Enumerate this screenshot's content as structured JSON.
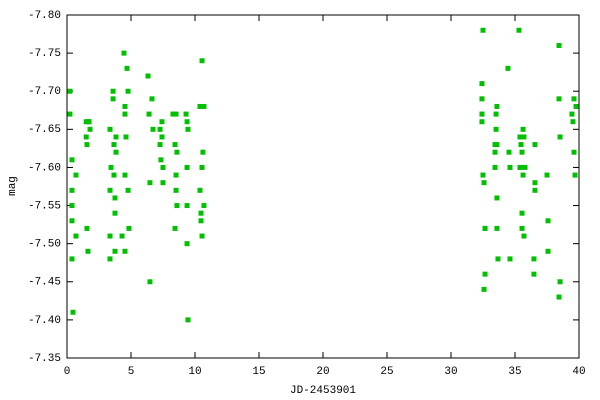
{
  "chart_data": {
    "type": "scatter",
    "x_label": "JD-2453901",
    "y_label": "mag",
    "color": "#00c000",
    "xlim": [
      0,
      40
    ],
    "xticks": [
      0,
      5,
      10,
      15,
      20,
      25,
      30,
      35,
      40
    ],
    "ylim": [
      -7.35,
      -7.8
    ],
    "yticks": [
      {
        "value": -7.8,
        "label": "-7.80"
      },
      -7.75,
      {
        "value": -7.7,
        "label": "-7.70"
      },
      -7.65,
      {
        "value": -7.6,
        "label": "-7.60"
      },
      -7.55,
      {
        "value": -7.5,
        "label": "-7.50"
      },
      -7.45,
      {
        "value": -7.4,
        "label": "-7.40"
      },
      -7.35
    ],
    "x": [
      0.23,
      0.23,
      0.39,
      0.39,
      0.39,
      0.39,
      0.39,
      0.47,
      0.7,
      0.7,
      1.5,
      1.5,
      1.56,
      1.56,
      1.64,
      1.72,
      1.72,
      1.8,
      3.36,
      3.36,
      3.36,
      3.36,
      3.44,
      3.6,
      3.6,
      3.67,
      3.67,
      3.75,
      3.75,
      3.75,
      3.83,
      3.83,
      4.3,
      4.45,
      4.53,
      4.53,
      4.53,
      4.53,
      4.61,
      4.69,
      4.77,
      4.77,
      4.84,
      6.33,
      6.41,
      6.48,
      6.48,
      6.64,
      6.72,
      7.27,
      7.27,
      7.34,
      7.42,
      7.42,
      7.5,
      7.5,
      8.28,
      8.44,
      8.44,
      8.52,
      8.52,
      8.52,
      8.59,
      8.59,
      9.3,
      9.38,
      9.45,
      9.38,
      9.38,
      9.38,
      9.45,
      10.39,
      10.39,
      10.47,
      10.47,
      10.55,
      10.55,
      10.55,
      10.62,
      10.7,
      10.7,
      32.5,
      32.42,
      32.42,
      32.42,
      32.42,
      32.5,
      32.58,
      32.66,
      32.66,
      32.66,
      32.58,
      33.44,
      33.44,
      33.44,
      33.52,
      33.52,
      33.59,
      33.59,
      33.59,
      33.59,
      33.67,
      34.45,
      34.53,
      34.61,
      34.61,
      35.31,
      35.39,
      35.39,
      35.47,
      35.55,
      35.55,
      35.55,
      35.63,
      35.63,
      35.7,
      35.7,
      35.78,
      36.56,
      36.56,
      36.56,
      36.48,
      36.48,
      37.5,
      37.58,
      37.58,
      38.44,
      38.44,
      38.52,
      38.52,
      38.44,
      39.45,
      39.53,
      39.61,
      39.61,
      39.69,
      39.77
    ],
    "values": [
      -7.7,
      -7.67,
      -7.61,
      -7.57,
      -7.55,
      -7.53,
      -7.48,
      -7.41,
      -7.51,
      -7.59,
      -7.66,
      -7.64,
      -7.63,
      -7.52,
      -7.49,
      -7.66,
      -7.66,
      -7.65,
      -7.65,
      -7.57,
      -7.51,
      -7.48,
      -7.6,
      -7.69,
      -7.7,
      -7.63,
      -7.59,
      -7.56,
      -7.54,
      -7.49,
      -7.62,
      -7.64,
      -7.51,
      -7.75,
      -7.67,
      -7.59,
      -7.49,
      -7.68,
      -7.64,
      -7.73,
      -7.7,
      -7.57,
      -7.52,
      -7.72,
      -7.67,
      -7.58,
      -7.45,
      -7.69,
      -7.65,
      -7.65,
      -7.63,
      -7.61,
      -7.66,
      -7.64,
      -7.6,
      -7.58,
      -7.67,
      -7.63,
      -7.52,
      -7.67,
      -7.59,
      -7.57,
      -7.55,
      -7.62,
      -7.67,
      -7.66,
      -7.65,
      -7.6,
      -7.5,
      -7.55,
      -7.4,
      -7.68,
      -7.57,
      -7.53,
      -7.54,
      -7.74,
      -7.51,
      -7.6,
      -7.62,
      -7.68,
      -7.55,
      -7.78,
      -7.71,
      -7.69,
      -7.66,
      -7.67,
      -7.59,
      -7.58,
      -7.52,
      -7.52,
      -7.46,
      -7.44,
      -7.63,
      -7.62,
      -7.6,
      -7.67,
      -7.65,
      -7.68,
      -7.63,
      -7.56,
      -7.52,
      -7.48,
      -7.73,
      -7.62,
      -7.6,
      -7.48,
      -7.78,
      -7.6,
      -7.64,
      -7.63,
      -7.62,
      -7.52,
      -7.54,
      -7.65,
      -7.59,
      -7.64,
      -7.51,
      -7.6,
      -7.63,
      -7.58,
      -7.57,
      -7.48,
      -7.46,
      -7.59,
      -7.53,
      -7.49,
      -7.76,
      -7.69,
      -7.64,
      -7.45,
      -7.43,
      -7.67,
      -7.66,
      -7.69,
      -7.62,
      -7.59,
      -7.68
    ]
  }
}
